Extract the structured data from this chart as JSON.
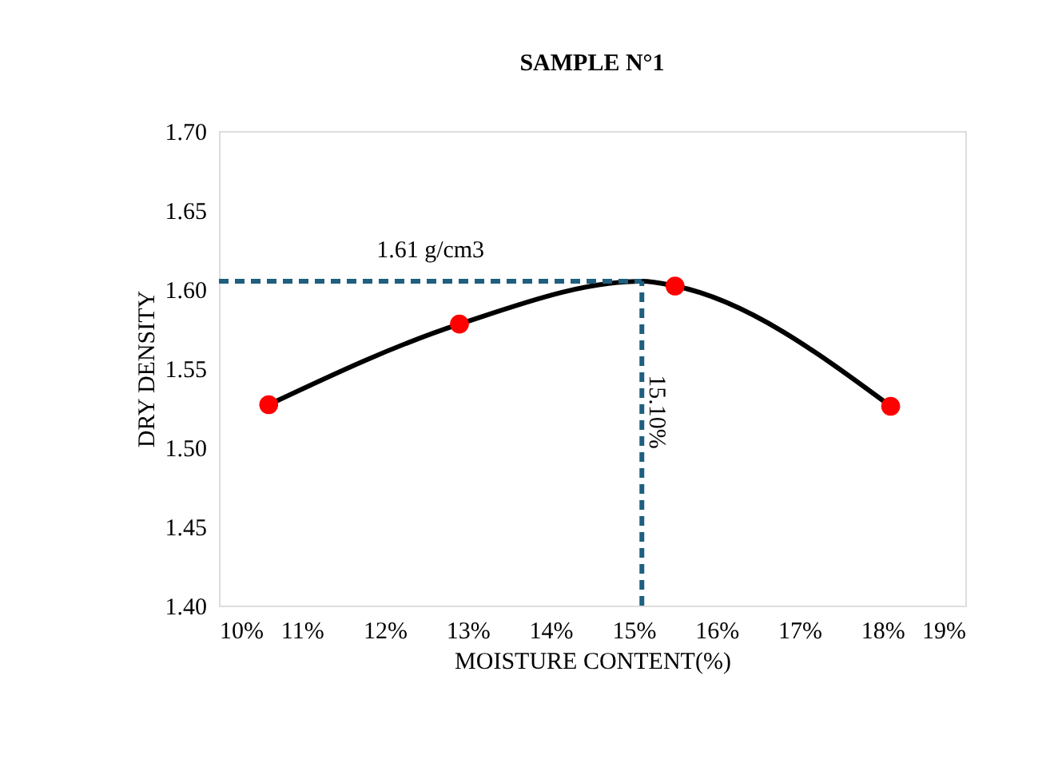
{
  "chart_data": {
    "type": "scatter",
    "title": "SAMPLE N°1",
    "xlabel": "MOISTURE CONTENT(%)",
    "ylabel": "DRY DENSITY",
    "xlim": [
      10,
      19
    ],
    "xticks": [
      {
        "value": 10,
        "label": "10%"
      },
      {
        "value": 11,
        "label": "11%"
      },
      {
        "value": 12,
        "label": "12%"
      },
      {
        "value": 13,
        "label": "13%"
      },
      {
        "value": 14,
        "label": "14%"
      },
      {
        "value": 15,
        "label": "15%"
      },
      {
        "value": 16,
        "label": "16%"
      },
      {
        "value": 17,
        "label": "17%"
      },
      {
        "value": 18,
        "label": "18%"
      },
      {
        "value": 19,
        "label": "19%"
      }
    ],
    "ylim": [
      1.4,
      1.7
    ],
    "yticks": [
      {
        "value": 1.4,
        "label": "1.40"
      },
      {
        "value": 1.45,
        "label": "1.45"
      },
      {
        "value": 1.5,
        "label": "1.50"
      },
      {
        "value": 1.55,
        "label": "1.55"
      },
      {
        "value": 1.6,
        "label": "1.60"
      },
      {
        "value": 1.65,
        "label": "1.65"
      },
      {
        "value": 1.7,
        "label": "1.70"
      }
    ],
    "grid": false,
    "series": [
      {
        "type": "line",
        "color": "#000000",
        "marker": "none",
        "x": [
          10.6,
          12.9,
          15.1,
          15.5,
          18.1
        ],
        "values": [
          1.527,
          1.578,
          1.605,
          1.602,
          1.526
        ]
      },
      {
        "type": "scatter",
        "color": "#ff0000",
        "marker": "circle",
        "x": [
          10.6,
          12.9,
          15.5,
          18.1
        ],
        "values": [
          1.527,
          1.578,
          1.602,
          1.526
        ]
      }
    ],
    "ref_lines": [
      {
        "axis": "y",
        "value": 1.605,
        "label": "1.61 g/cm3",
        "color": "#1f5f7f",
        "line_style": "dashed"
      },
      {
        "axis": "x",
        "value": 15.1,
        "label": "15.10%",
        "color": "#1f5f7f",
        "line_style": "dashed"
      }
    ]
  }
}
